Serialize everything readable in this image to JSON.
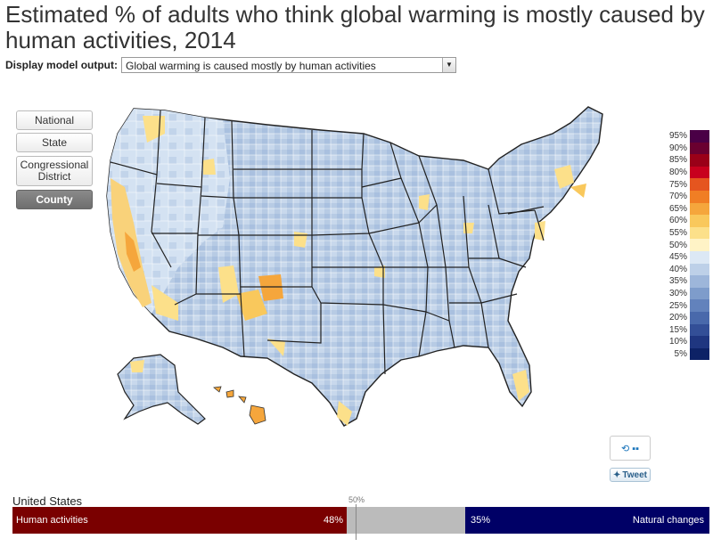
{
  "title": "Estimated % of adults who think global warming is mostly caused by human activities, 2014",
  "model": {
    "label": "Display model output:",
    "selected": "Global warming is caused mostly by human activities"
  },
  "geo_buttons": [
    {
      "label": "National",
      "active": false
    },
    {
      "label": "State",
      "active": false
    },
    {
      "label": "Congressional District",
      "active": false
    },
    {
      "label": "County",
      "active": true
    }
  ],
  "legend": {
    "labels": [
      "95%",
      "90%",
      "85%",
      "80%",
      "75%",
      "70%",
      "65%",
      "60%",
      "55%",
      "50%",
      "45%",
      "40%",
      "35%",
      "30%",
      "25%",
      "20%",
      "15%",
      "10%",
      "5%"
    ],
    "colors": [
      "#4a0046",
      "#6a0030",
      "#9a0018",
      "#c8001e",
      "#e5551f",
      "#f07e24",
      "#f5a63c",
      "#f9c85c",
      "#fce08a",
      "#fff3c6",
      "#dce8f5",
      "#bdd0e8",
      "#9db6da",
      "#7e9ccb",
      "#6282bc",
      "#4969ab",
      "#334f97",
      "#1f3680",
      "#0d2266"
    ]
  },
  "share": {
    "tweet_label": "Tweet"
  },
  "national": {
    "region": "United States",
    "human_label": "Human activities",
    "human_pct": "48%",
    "human_value": 48,
    "natural_label": "Natural changes",
    "natural_pct": "35%",
    "natural_value": 35,
    "mid_label": "50%"
  },
  "icons": {
    "dropdown": "chevron-down-icon",
    "share": "share-icon"
  }
}
